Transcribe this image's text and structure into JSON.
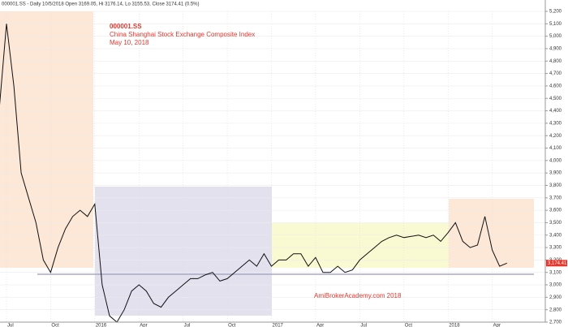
{
  "chart_data": {
    "type": "line",
    "header": "000001.SS - Daily 10/5/2018 Open 3169.05, Hi 3176.14, Lo 3155.53, Close 3174.41 (0.5%)",
    "title": "000001.SS",
    "subtitle": "China Shanghai Stock Exchange Composite Index",
    "date_label": "May 10, 2018",
    "footer_note": "AmiBrokerAcademy.com  2018",
    "categories": [
      null,
      "Jul",
      null,
      null,
      null,
      null,
      null,
      "Oct",
      null,
      null,
      null,
      null,
      null,
      "2016",
      null,
      null,
      null,
      null,
      null,
      "Apr",
      null,
      null,
      null,
      null,
      null,
      "Jul",
      null,
      null,
      null,
      null,
      null,
      "Oct",
      null,
      null,
      null,
      null,
      null,
      "2017",
      null,
      null,
      null,
      null,
      null,
      "Apr",
      null,
      null,
      null,
      null,
      null,
      "Jul",
      null,
      null,
      null,
      null,
      null,
      "Oct",
      null,
      null,
      null,
      null,
      null,
      "2018",
      null,
      null,
      null,
      null,
      null,
      "Apr",
      null,
      null
    ],
    "series": [
      {
        "color": "#111111",
        "values": [
          4400,
          5100,
          4600,
          3900,
          3700,
          3500,
          3200,
          3100,
          3300,
          3450,
          3550,
          3600,
          3550,
          3650,
          3000,
          2750,
          2700,
          2800,
          2950,
          3000,
          2950,
          2850,
          2820,
          2900,
          2950,
          3000,
          3050,
          3050,
          3080,
          3100,
          3030,
          3050,
          3100,
          3150,
          3200,
          3150,
          3250,
          3150,
          3200,
          3200,
          3250,
          3250,
          3150,
          3220,
          3100,
          3100,
          3150,
          3100,
          3120,
          3200,
          3250,
          3300,
          3350,
          3380,
          3400,
          3380,
          3390,
          3400,
          3380,
          3400,
          3350,
          3420,
          3500,
          3350,
          3300,
          3320,
          3550,
          3280,
          3150,
          3174.41
        ]
      }
    ],
    "last_value": {
      "value": 3174.41,
      "label": "3,174.41"
    },
    "hline": 3085,
    "ylim": [
      2700,
      5200
    ],
    "yticks": [
      {
        "value": 2700,
        "label": "2,700"
      },
      {
        "value": 2800,
        "label": "2,800"
      },
      {
        "value": 2900,
        "label": "2,900"
      },
      {
        "value": 3000,
        "label": "3,000"
      },
      {
        "value": 3100,
        "label": "3,100"
      },
      {
        "value": 3200,
        "label": "3,200"
      },
      {
        "value": 3300,
        "label": "3,300"
      },
      {
        "value": 3400,
        "label": "3,400"
      },
      {
        "value": 3500,
        "label": "3,500"
      },
      {
        "value": 3600,
        "label": "3,600"
      },
      {
        "value": 3700,
        "label": "3,700"
      },
      {
        "value": 3800,
        "label": "3,800"
      },
      {
        "value": 3900,
        "label": "3,900"
      },
      {
        "value": 4000,
        "label": "4,000"
      },
      {
        "value": 4100,
        "label": "4,100"
      },
      {
        "value": 4200,
        "label": "4,200"
      },
      {
        "value": 4300,
        "label": "4,300"
      },
      {
        "value": 4400,
        "label": "4,400"
      },
      {
        "value": 4500,
        "label": "4,500"
      },
      {
        "value": 4600,
        "label": "4,600"
      },
      {
        "value": 4700,
        "label": "4,700"
      },
      {
        "value": 4800,
        "label": "4,800"
      },
      {
        "value": 4900,
        "label": "4,900"
      },
      {
        "value": 5000,
        "label": "5,000"
      },
      {
        "value": 5100,
        "label": "5,100"
      },
      {
        "value": 5200,
        "label": "5,200"
      }
    ],
    "grid": true
  }
}
